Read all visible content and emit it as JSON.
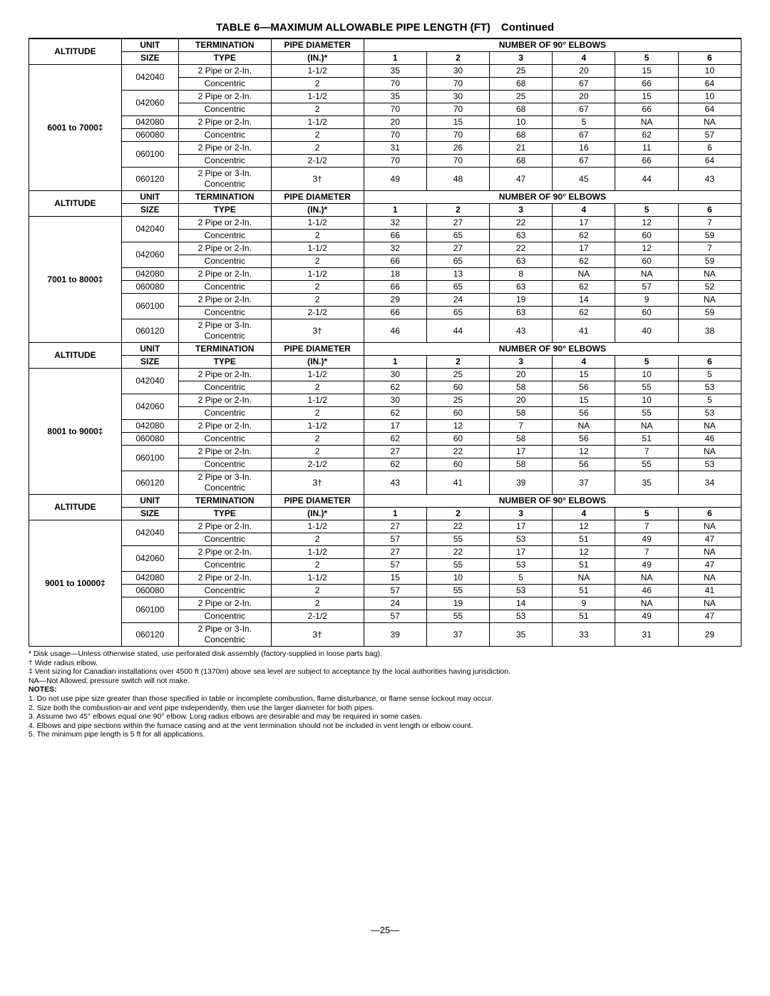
{
  "title": "TABLE 6—MAXIMUM ALLOWABLE PIPE LENGTH (FT) Continued",
  "headers": {
    "altitude": "ALTITUDE",
    "unit_top": "UNIT",
    "unit_bot": "SIZE",
    "term_top": "TERMINATION",
    "term_bot": "TYPE",
    "dia_top": "PIPE DIAMETER",
    "dia_bot": "(IN.)*",
    "elbows_title": "NUMBER OF 90° ELBOWS",
    "e1": "1",
    "e2": "2",
    "e3": "3",
    "e4": "4",
    "e5": "5",
    "e6": "6"
  },
  "sections": [
    {
      "altitude": "6001 to 7000‡",
      "groups": [
        {
          "unit": "042040",
          "rows": [
            {
              "term": "2 Pipe or 2-In.",
              "dia": "1-1/2",
              "v": [
                "35",
                "30",
                "25",
                "20",
                "15",
                "10"
              ]
            },
            {
              "term": "Concentric",
              "dia": "2",
              "v": [
                "70",
                "70",
                "68",
                "67",
                "66",
                "64"
              ]
            }
          ]
        },
        {
          "unit": "042060",
          "rows": [
            {
              "term": "2 Pipe or 2-In.",
              "dia": "1-1/2",
              "v": [
                "35",
                "30",
                "25",
                "20",
                "15",
                "10"
              ]
            },
            {
              "term": "Concentric",
              "dia": "2",
              "v": [
                "70",
                "70",
                "68",
                "67",
                "66",
                "64"
              ]
            }
          ]
        },
        {
          "unit": "042080",
          "single": true,
          "rows": [
            {
              "term": "2 Pipe or 2-In.",
              "dia": "1-1/2",
              "v": [
                "20",
                "15",
                "10",
                "5",
                "NA",
                "NA"
              ]
            }
          ]
        },
        {
          "unit": "060080",
          "single": true,
          "rows": [
            {
              "term": "Concentric",
              "dia": "2",
              "v": [
                "70",
                "70",
                "68",
                "67",
                "62",
                "57"
              ]
            }
          ]
        },
        {
          "unit": "060100",
          "rows": [
            {
              "term": "2 Pipe or 2-In.",
              "dia": "2",
              "v": [
                "31",
                "26",
                "21",
                "16",
                "11",
                "6"
              ]
            },
            {
              "term": "Concentric",
              "dia": "2-1/2",
              "v": [
                "70",
                "70",
                "68",
                "67",
                "66",
                "64"
              ]
            }
          ]
        },
        {
          "unit": "060120",
          "combined": true,
          "rows": [
            {
              "term1": "2 Pipe or 3-In.",
              "term2": "Concentric",
              "dia": "3†",
              "v": [
                "49",
                "48",
                "47",
                "45",
                "44",
                "43"
              ]
            }
          ]
        }
      ]
    },
    {
      "altitude": "7001 to 8000‡",
      "groups": [
        {
          "unit": "042040",
          "rows": [
            {
              "term": "2 Pipe or 2-In.",
              "dia": "1-1/2",
              "v": [
                "32",
                "27",
                "22",
                "17",
                "12",
                "7"
              ]
            },
            {
              "term": "Concentric",
              "dia": "2",
              "v": [
                "66",
                "65",
                "63",
                "62",
                "60",
                "59"
              ]
            }
          ]
        },
        {
          "unit": "042060",
          "rows": [
            {
              "term": "2 Pipe or 2-In.",
              "dia": "1-1/2",
              "v": [
                "32",
                "27",
                "22",
                "17",
                "12",
                "7"
              ]
            },
            {
              "term": "Concentric",
              "dia": "2",
              "v": [
                "66",
                "65",
                "63",
                "62",
                "60",
                "59"
              ]
            }
          ]
        },
        {
          "unit": "042080",
          "single": true,
          "rows": [
            {
              "term": "2 Pipe or 2-In.",
              "dia": "1-1/2",
              "v": [
                "18",
                "13",
                "8",
                "NA",
                "NA",
                "NA"
              ]
            }
          ]
        },
        {
          "unit": "060080",
          "single": true,
          "rows": [
            {
              "term": "Concentric",
              "dia": "2",
              "v": [
                "66",
                "65",
                "63",
                "62",
                "57",
                "52"
              ]
            }
          ]
        },
        {
          "unit": "060100",
          "rows": [
            {
              "term": "2 Pipe or 2-In.",
              "dia": "2",
              "v": [
                "29",
                "24",
                "19",
                "14",
                "9",
                "NA"
              ]
            },
            {
              "term": "Concentric",
              "dia": "2-1/2",
              "v": [
                "66",
                "65",
                "63",
                "62",
                "60",
                "59"
              ]
            }
          ]
        },
        {
          "unit": "060120",
          "combined": true,
          "rows": [
            {
              "term1": "2 Pipe or 3-In.",
              "term2": "Concentric",
              "dia": "3†",
              "v": [
                "46",
                "44",
                "43",
                "41",
                "40",
                "38"
              ]
            }
          ]
        }
      ]
    },
    {
      "altitude": "8001 to 9000‡",
      "groups": [
        {
          "unit": "042040",
          "rows": [
            {
              "term": "2 Pipe or 2-In.",
              "dia": "1-1/2",
              "v": [
                "30",
                "25",
                "20",
                "15",
                "10",
                "5"
              ]
            },
            {
              "term": "Concentric",
              "dia": "2",
              "v": [
                "62",
                "60",
                "58",
                "56",
                "55",
                "53"
              ]
            }
          ]
        },
        {
          "unit": "042060",
          "rows": [
            {
              "term": "2 Pipe or 2-In.",
              "dia": "1-1/2",
              "v": [
                "30",
                "25",
                "20",
                "15",
                "10",
                "5"
              ]
            },
            {
              "term": "Concentric",
              "dia": "2",
              "v": [
                "62",
                "60",
                "58",
                "56",
                "55",
                "53"
              ]
            }
          ]
        },
        {
          "unit": "042080",
          "single": true,
          "rows": [
            {
              "term": "2 Pipe or 2-In.",
              "dia": "1-1/2",
              "v": [
                "17",
                "12",
                "7",
                "NA",
                "NA",
                "NA"
              ]
            }
          ]
        },
        {
          "unit": "060080",
          "single": true,
          "rows": [
            {
              "term": "Concentric",
              "dia": "2",
              "v": [
                "62",
                "60",
                "58",
                "56",
                "51",
                "46"
              ]
            }
          ]
        },
        {
          "unit": "060100",
          "rows": [
            {
              "term": "2 Pipe or 2-In.",
              "dia": "2",
              "v": [
                "27",
                "22",
                "17",
                "12",
                "7",
                "NA"
              ]
            },
            {
              "term": "Concentric",
              "dia": "2-1/2",
              "v": [
                "62",
                "60",
                "58",
                "56",
                "55",
                "53"
              ]
            }
          ]
        },
        {
          "unit": "060120",
          "combined": true,
          "rows": [
            {
              "term1": "2 Pipe or 3-In.",
              "term2": "Concentric",
              "dia": "3†",
              "v": [
                "43",
                "41",
                "39",
                "37",
                "35",
                "34"
              ]
            }
          ]
        }
      ]
    },
    {
      "altitude": "9001 to 10000‡",
      "groups": [
        {
          "unit": "042040",
          "rows": [
            {
              "term": "2 Pipe or 2-In.",
              "dia": "1-1/2",
              "v": [
                "27",
                "22",
                "17",
                "12",
                "7",
                "NA"
              ]
            },
            {
              "term": "Concentric",
              "dia": "2",
              "v": [
                "57",
                "55",
                "53",
                "51",
                "49",
                "47"
              ]
            }
          ]
        },
        {
          "unit": "042060",
          "rows": [
            {
              "term": "2 Pipe or 2-In.",
              "dia": "1-1/2",
              "v": [
                "27",
                "22",
                "17",
                "12",
                "7",
                "NA"
              ]
            },
            {
              "term": "Concentric",
              "dia": "2",
              "v": [
                "57",
                "55",
                "53",
                "51",
                "49",
                "47"
              ]
            }
          ]
        },
        {
          "unit": "042080",
          "single": true,
          "rows": [
            {
              "term": "2 Pipe or 2-In.",
              "dia": "1-1/2",
              "v": [
                "15",
                "10",
                "5",
                "NA",
                "NA",
                "NA"
              ]
            }
          ]
        },
        {
          "unit": "060080",
          "single": true,
          "rows": [
            {
              "term": "Concentric",
              "dia": "2",
              "v": [
                "57",
                "55",
                "53",
                "51",
                "46",
                "41"
              ]
            }
          ]
        },
        {
          "unit": "060100",
          "rows": [
            {
              "term": "2 Pipe or 2-In.",
              "dia": "2",
              "v": [
                "24",
                "19",
                "14",
                "9",
                "NA",
                "NA"
              ]
            },
            {
              "term": "Concentric",
              "dia": "2-1/2",
              "v": [
                "57",
                "55",
                "53",
                "51",
                "49",
                "47"
              ]
            }
          ]
        },
        {
          "unit": "060120",
          "combined": true,
          "rows": [
            {
              "term1": "2 Pipe or 3-In.",
              "term2": "Concentric",
              "dia": "3†",
              "v": [
                "39",
                "37",
                "35",
                "33",
                "31",
                "29"
              ]
            }
          ]
        }
      ]
    }
  ],
  "footnotes": {
    "star": "* Disk usage—Unless otherwise stated, use perforated disk assembly (factory-supplied in loose parts bag).",
    "dagger": "† Wide radius elbow.",
    "ddagger": "‡ Vent sizing for Canadian installations over 4500 ft (1370m) above sea level are subject to acceptance by the local authorities having jurisdiction.",
    "na": "NA—Not Allowed; pressure switch will not make.",
    "notes_label": "NOTES:",
    "n1": "1. Do not use pipe size greater than those specified in table or incomplete combustion, flame disturbance, or flame sense lockout may occur.",
    "n2": "2. Size both the combustion-air and vent pipe independently, then use the larger diameter for both pipes.",
    "n3": "3. Assume two 45° elbows equal one 90° elbow. Long radius elbows are desirable and may be required in some cases.",
    "n4": "4. Elbows and pipe sections within the furnace casing and at the vent termination should not be included in vent length or elbow count.",
    "n5": "5. The minimum pipe length is 5 ft for all applications."
  },
  "pagenum": "—25—"
}
